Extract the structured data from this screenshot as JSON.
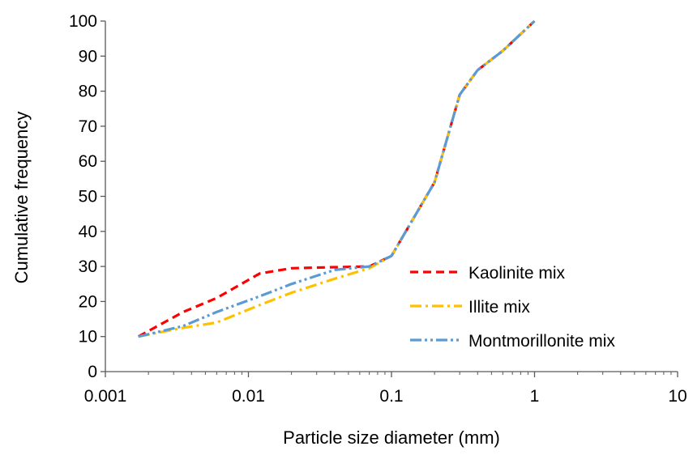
{
  "chart_data": {
    "type": "line",
    "xlabel": "Particle size diameter (mm)",
    "ylabel": "Cumulative frequency",
    "x_scale": "log",
    "xlim": [
      0.001,
      10
    ],
    "ylim": [
      0,
      100
    ],
    "x_ticks": [
      "0.001",
      "0.01",
      "0.1",
      "1",
      "10"
    ],
    "y_ticks": [
      "0",
      "10",
      "20",
      "30",
      "40",
      "50",
      "60",
      "70",
      "80",
      "90",
      "100"
    ],
    "grid": false,
    "legend_position": "bottom-right",
    "series": [
      {
        "name": "Kaolinite mix",
        "color": "#ff0000",
        "dash": "dash",
        "points": [
          [
            0.0017,
            10
          ],
          [
            0.0035,
            17
          ],
          [
            0.006,
            21
          ],
          [
            0.012,
            28
          ],
          [
            0.02,
            29.5
          ],
          [
            0.04,
            29.8
          ],
          [
            0.07,
            30
          ],
          [
            0.1,
            33
          ],
          [
            0.2,
            54
          ],
          [
            0.3,
            79
          ],
          [
            0.4,
            86
          ],
          [
            0.6,
            91.5
          ],
          [
            1.0,
            100
          ]
        ]
      },
      {
        "name": "Illite mix",
        "color": "#ffc000",
        "dash": "dashdot",
        "points": [
          [
            0.0017,
            10
          ],
          [
            0.0035,
            12.5
          ],
          [
            0.006,
            14
          ],
          [
            0.012,
            19
          ],
          [
            0.02,
            22.5
          ],
          [
            0.04,
            26.5
          ],
          [
            0.07,
            29.5
          ],
          [
            0.1,
            33
          ],
          [
            0.2,
            54
          ],
          [
            0.3,
            79
          ],
          [
            0.4,
            86
          ],
          [
            0.6,
            91.5
          ],
          [
            1.0,
            100
          ]
        ]
      },
      {
        "name": "Montmorillonite mix",
        "color": "#5b9bd5",
        "dash": "dashdotdot",
        "points": [
          [
            0.0017,
            10
          ],
          [
            0.0035,
            13
          ],
          [
            0.006,
            17
          ],
          [
            0.012,
            21.5
          ],
          [
            0.02,
            25
          ],
          [
            0.04,
            29
          ],
          [
            0.07,
            30
          ],
          [
            0.1,
            33
          ],
          [
            0.2,
            54
          ],
          [
            0.3,
            79
          ],
          [
            0.4,
            86
          ],
          [
            0.6,
            91.5
          ],
          [
            1.0,
            100
          ]
        ]
      }
    ]
  }
}
